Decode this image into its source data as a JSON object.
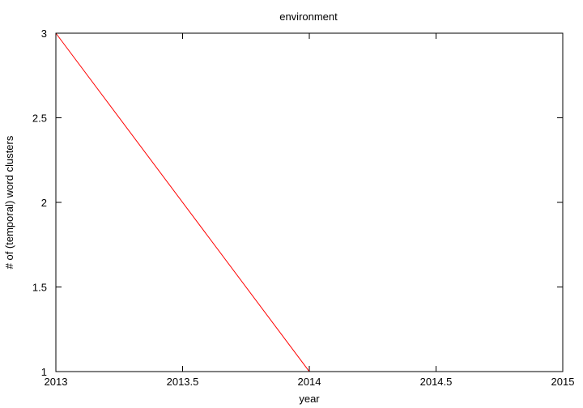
{
  "chart_data": {
    "type": "line",
    "title": "environment",
    "xlabel": "year",
    "ylabel": "# of (temporal) word clusters",
    "xlim": [
      2013,
      2015
    ],
    "ylim": [
      1,
      3
    ],
    "grid": false,
    "xticks": [
      2013,
      2013.5,
      2014,
      2014.5,
      2015
    ],
    "xtick_labels": [
      "2013",
      "2013.5",
      "2014",
      "2014.5",
      "2015"
    ],
    "yticks": [
      1,
      1.5,
      2,
      2.5,
      3
    ],
    "ytick_labels": [
      "1",
      "1.5",
      "2",
      "2.5",
      "3"
    ],
    "series": [
      {
        "color": "#ff0000",
        "x": [
          2013,
          2014,
          2015
        ],
        "y": [
          3,
          1,
          1
        ]
      }
    ]
  }
}
